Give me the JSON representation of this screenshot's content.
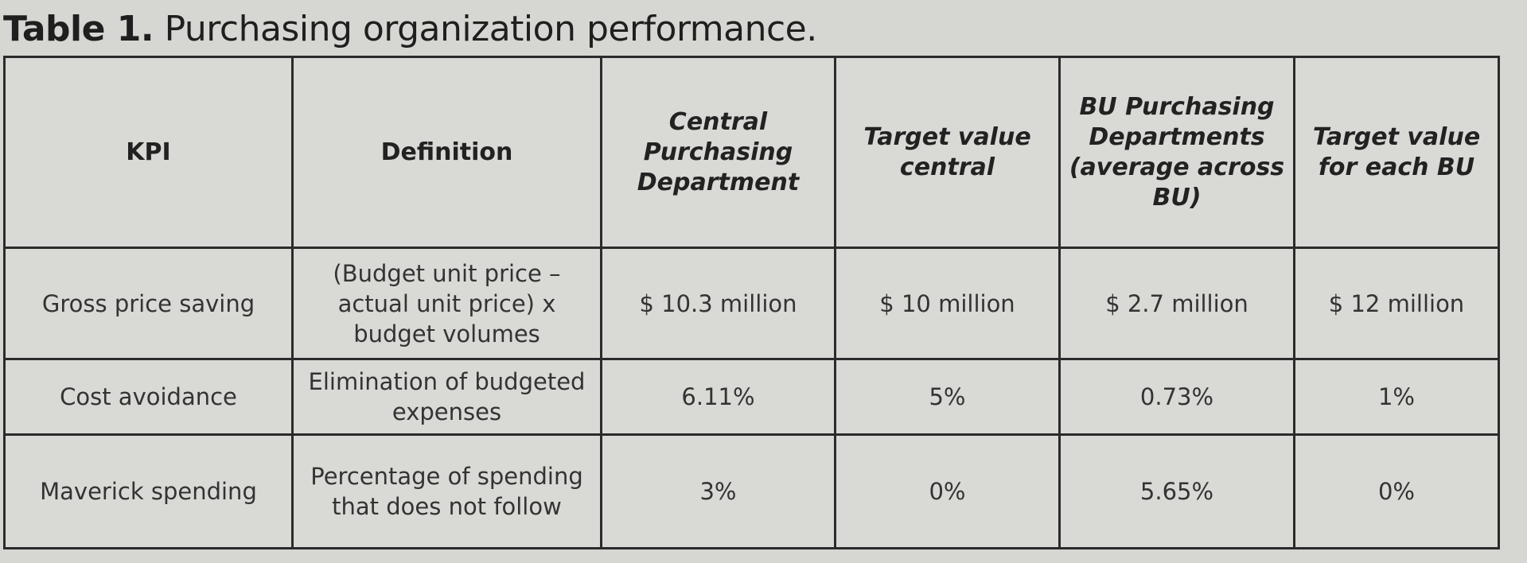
{
  "caption": {
    "label": "Table 1.",
    "text": "Purchasing organization performance."
  },
  "table": {
    "headers": [
      "KPI",
      "Definition",
      "Central Purchasing Department",
      "Target value central",
      "BU Purchasing Departments (average across BU)",
      "Target value for each BU"
    ],
    "rows": [
      [
        "Gross price saving",
        "(Budget unit price – actual unit price) x budget volumes",
        "$ 10.3 million",
        "$ 10 million",
        "$ 2.7 million",
        "$ 12 million"
      ],
      [
        "Cost avoidance",
        "Elimination of budgeted expenses",
        "6.11%",
        "5%",
        "0.73%",
        "1%"
      ],
      [
        "Maverick spending",
        "Percentage of spending that does not follow",
        "3%",
        "0%",
        "5.65%",
        "0%"
      ]
    ]
  }
}
